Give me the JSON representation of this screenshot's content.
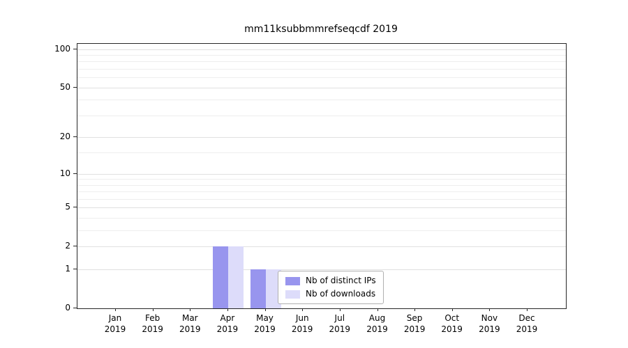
{
  "chart_data": {
    "type": "bar",
    "title": "mm11ksubbmmrefseqcdf 2019",
    "categories": [
      "Jan 2019",
      "Feb 2019",
      "Mar 2019",
      "Apr 2019",
      "May 2019",
      "Jun 2019",
      "Jul 2019",
      "Aug 2019",
      "Sep 2019",
      "Oct 2019",
      "Nov 2019",
      "Dec 2019"
    ],
    "series": [
      {
        "name": "Nb of distinct IPs",
        "color": "#9895ee",
        "values": [
          0,
          0,
          0,
          2,
          1,
          0,
          0,
          0,
          0,
          0,
          0,
          0
        ]
      },
      {
        "name": "Nb of downloads",
        "color": "#dddcfa",
        "values": [
          0,
          0,
          0,
          2,
          1,
          0,
          0,
          0,
          0,
          0,
          0,
          0
        ]
      }
    ],
    "yticks": [
      0,
      1,
      2,
      5,
      10,
      20,
      50,
      100
    ],
    "minor_yticks": [
      3,
      4,
      6,
      7,
      8,
      9,
      15,
      30,
      40,
      60,
      70,
      80,
      90
    ],
    "scale": "log10(value+1)",
    "ylim": [
      0,
      110
    ],
    "grid": true,
    "legend_position": "inside lower-center"
  },
  "colors": {
    "axis": "#262626",
    "grid_major": "#e0e0e0",
    "grid_minor": "#eeeeee",
    "legend_border": "#b0b0b0"
  }
}
